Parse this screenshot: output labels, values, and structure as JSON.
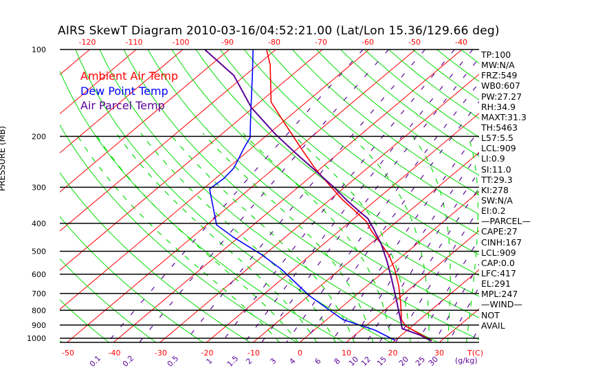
{
  "title": "AIRS SkewT Diagram 2010-03-16/04:52:21.00 (Lat/Lon 15.36/129.66 deg)",
  "legend": [
    {
      "label": "Ambient Air Temp",
      "color": "#ff0000"
    },
    {
      "label": "Dew Point Temp",
      "color": "#0000ff"
    },
    {
      "label": "Air Parcel Temp",
      "color": "#5a0096"
    }
  ],
  "stats": [
    "TP:100",
    "MW:N/A",
    "FRZ:549",
    "WB0:607",
    "PW:27.27",
    "RH:34.9",
    "MAXT:31.3",
    "TH:5463",
    "L57:5.5",
    "LCL:909",
    "LI:0.9",
    "SI:11.0",
    "TT:29.3",
    "KI:278",
    "SW:N/A",
    "EI:0.2",
    "—PARCEL—",
    "CAPE:27",
    "CINH:167",
    "LCL:909",
    "CAP:0.0",
    "LFC:417",
    "EL:291",
    "MPL:247",
    "—WIND—",
    "NOT",
    "AVAIL"
  ],
  "chart_data": {
    "type": "line",
    "title": "AIRS SkewT Diagram 2010-03-16/04:52:21.00 (Lat/Lon 15.36/129.66 deg)",
    "ylabel": "PRESSURE (MB)",
    "xlabel": "T(C)",
    "mixing_ratio_label": "(g/kg)",
    "pressure_ticks": [
      100,
      200,
      300,
      400,
      500,
      600,
      700,
      800,
      900,
      1000
    ],
    "pressure_tick_labels": [
      "100",
      "200",
      "300",
      "400",
      "500",
      "600",
      "700",
      "800",
      "900",
      "1000"
    ],
    "bottom_temp_ticks": [
      -50,
      -40,
      -30,
      -20,
      -10,
      0,
      10,
      20,
      30
    ],
    "bottom_temp_labels": [
      "-50",
      "-40",
      "-30",
      "-20",
      "-10",
      "0",
      "10",
      "20",
      "30"
    ],
    "top_temp_ticks": [
      -120,
      -110,
      -100,
      -90,
      -80,
      -70,
      -60,
      -50,
      -40
    ],
    "top_temp_labels": [
      "-120",
      "-110",
      "-100",
      "-90",
      "-80",
      "-70",
      "-60",
      "-50",
      "-40"
    ],
    "mixing_ratio_ticks": [
      "0.1",
      "0.2",
      "0.5",
      "1",
      "1.5",
      "2",
      "3",
      "4",
      "6",
      "8",
      "10",
      "12",
      "15",
      "20",
      "25",
      "30"
    ],
    "ylim": [
      100,
      1035
    ],
    "grid": true,
    "series": [
      {
        "name": "Ambient Air Temp",
        "color": "#ff0000",
        "p": [
          100,
          113,
          152,
          181,
          223,
          258,
          296,
          330,
          359,
          394,
          423,
          472,
          518,
          578,
          656,
          752,
          863,
          906,
          957,
          1017
        ],
        "t": [
          -82.0,
          -77.3,
          -67.6,
          -59.0,
          -48.6,
          -41.2,
          -33.6,
          -27.5,
          -22.3,
          -16.6,
          -13.3,
          -7.6,
          -2.9,
          1.8,
          6.7,
          11.5,
          16.1,
          18.5,
          22.9,
          27.8
        ]
      },
      {
        "name": "Dew Point Temp",
        "color": "#0000ff",
        "p": [
          100,
          123,
          162,
          202,
          219,
          244,
          258,
          280,
          304,
          405,
          447,
          512,
          578,
          712,
          817,
          863,
          936,
          1017
        ],
        "t": [
          -84.9,
          -78.4,
          -69.9,
          -63.0,
          -61.7,
          -59.7,
          -58.7,
          -58.2,
          -58.6,
          -47.9,
          -41.1,
          -30.8,
          -22.5,
          -9.9,
          -0.3,
          3.6,
          12.9,
          20.0
        ]
      },
      {
        "name": "Air Parcel Temp",
        "color": "#5a0096",
        "p": [
          100,
          123,
          159,
          196,
          228,
          265,
          299,
          334,
          359,
          385,
          423,
          472,
          541,
          621,
          732,
          863,
          926,
          973,
          1023
        ],
        "t": [
          -95.3,
          -82.4,
          -70.4,
          -58.6,
          -49.4,
          -40.0,
          -32.5,
          -26.0,
          -21.5,
          -17.0,
          -12.6,
          -7.6,
          -2.0,
          3.4,
          9.7,
          15.9,
          18.5,
          23.8,
          28.0
        ]
      }
    ]
  }
}
